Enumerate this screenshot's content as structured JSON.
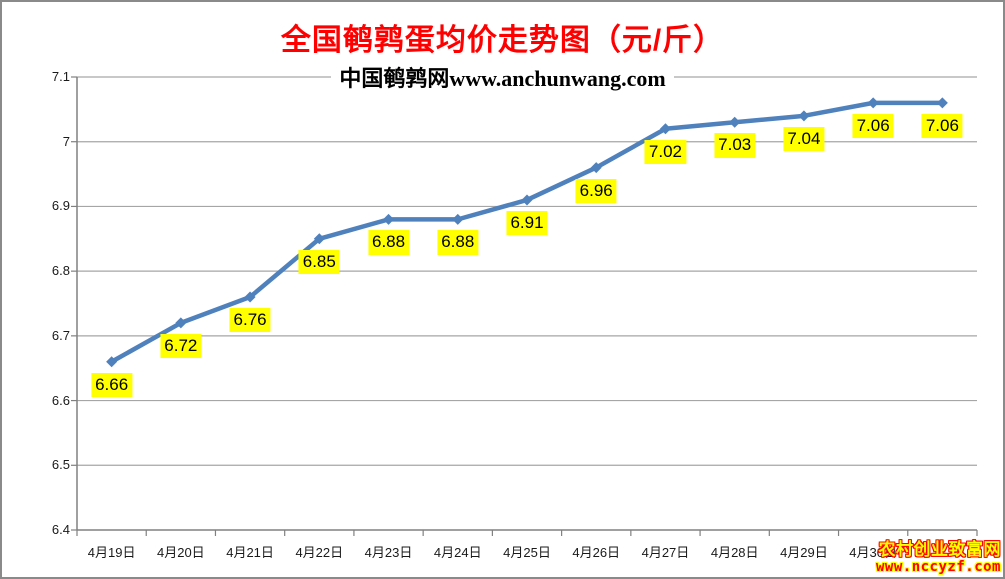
{
  "title": "全国鹌鹑蛋均价走势图（元/斤）",
  "subtitle": "中国鹌鹑网www.anchunwang.com",
  "watermark": {
    "site_name": "农村创业致富网",
    "site_url": "www.nccyzf.com"
  },
  "colors": {
    "title": "#FF0000",
    "subtitle": "#000000",
    "line": "#4F81BD",
    "marker": "#4F81BD",
    "label_bg": "#FFFF00",
    "label_text": "#000000",
    "gridline": "#A6A6A6",
    "axis": "#808080",
    "axis_text": "#1A1A1A",
    "watermark_name_fill": "#FFFF00",
    "watermark_name_outline": "#FF0000",
    "watermark_url_fill": "#FF0000",
    "watermark_url_outline": "#FFFF00"
  },
  "chart_data": {
    "type": "line",
    "title": "全国鹌鹑蛋均价走势图（元/斤）",
    "subtitle": "中国鹌鹑网www.anchunwang.com",
    "xlabel": "",
    "ylabel": "",
    "categories": [
      "4月19日",
      "4月20日",
      "4月21日",
      "4月22日",
      "4月23日",
      "4月24日",
      "4月25日",
      "4月26日",
      "4月27日",
      "4月28日",
      "4月29日",
      "4月30日",
      ""
    ],
    "values": [
      6.66,
      6.72,
      6.76,
      6.85,
      6.88,
      6.88,
      6.91,
      6.96,
      7.02,
      7.03,
      7.04,
      7.06,
      7.06
    ],
    "point_labels": [
      "6.66",
      "6.72",
      "6.76",
      "6.85",
      "6.88",
      "6.88",
      "6.91",
      "6.96",
      "7.02",
      "7.03",
      "7.04",
      "7.06",
      "7.06"
    ],
    "ylim": [
      6.4,
      7.1
    ],
    "ytick_step": 0.1,
    "ytick_labels": [
      "6.4",
      "6.5",
      "6.6",
      "6.7",
      "6.8",
      "6.9",
      "7",
      "7.1"
    ],
    "grid": true,
    "legend": "none",
    "marker": "diamond",
    "data_label_position": "below"
  }
}
